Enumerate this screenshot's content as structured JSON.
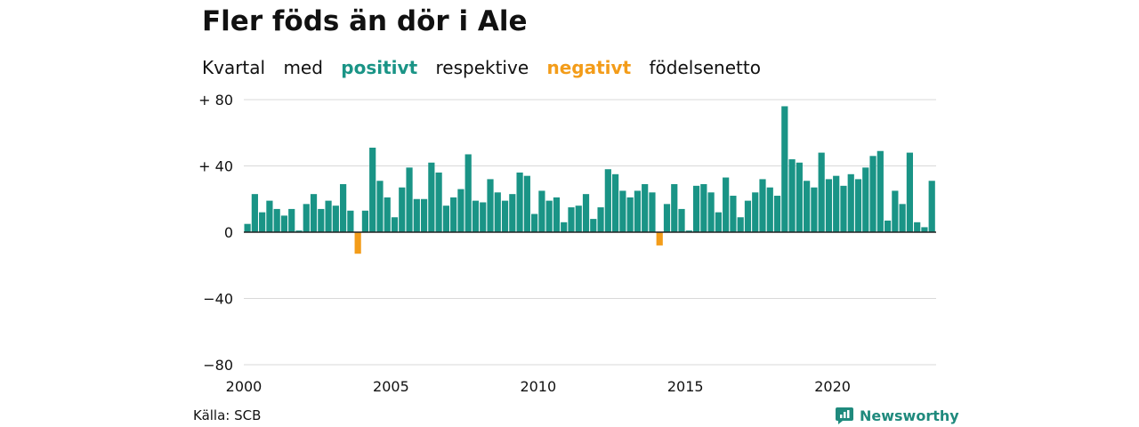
{
  "title": "Fler föds än dör i Ale",
  "subtitle": {
    "part1": "Kvartal",
    "part2": "med",
    "positive_word": "positivt",
    "part3": "respektive",
    "negative_word": "negativt",
    "part4": "födelsenetto"
  },
  "source": "Källa: SCB",
  "logo": {
    "text": "Newsworthy",
    "icon": "chart-bubble-icon"
  },
  "colors": {
    "positive": "#1a9486",
    "negative": "#f39c19",
    "grid": "#d9d9d9",
    "zero_line": "#222222"
  },
  "chart_data": {
    "type": "bar",
    "x_start_year": 2000,
    "bars_per_year": 4,
    "ylim": [
      -80,
      80
    ],
    "yticks": [
      80,
      40,
      0,
      -40,
      -80
    ],
    "ytick_labels": [
      "+ 80",
      "+ 40",
      "0",
      "−40",
      "−80"
    ],
    "xticks": [
      2000,
      2005,
      2010,
      2015,
      2020
    ],
    "xtick_labels": [
      "2000",
      "2005",
      "2010",
      "2015",
      "2020"
    ],
    "grid": true,
    "values": [
      5,
      23,
      12,
      19,
      14,
      10,
      14,
      1,
      17,
      23,
      14,
      19,
      16,
      29,
      13,
      -13,
      13,
      51,
      31,
      21,
      9,
      27,
      39,
      20,
      20,
      42,
      36,
      16,
      21,
      26,
      47,
      19,
      18,
      32,
      24,
      19,
      23,
      36,
      34,
      11,
      25,
      19,
      21,
      6,
      15,
      16,
      23,
      8,
      15,
      38,
      35,
      25,
      21,
      25,
      29,
      24,
      -8,
      17,
      29,
      14,
      1,
      28,
      29,
      24,
      12,
      33,
      22,
      9,
      19,
      24,
      32,
      27,
      22,
      76,
      44,
      42,
      31,
      27,
      48,
      32,
      34,
      28,
      35,
      32,
      39,
      46,
      49,
      7,
      25,
      17,
      48,
      6,
      3,
      31
    ]
  }
}
